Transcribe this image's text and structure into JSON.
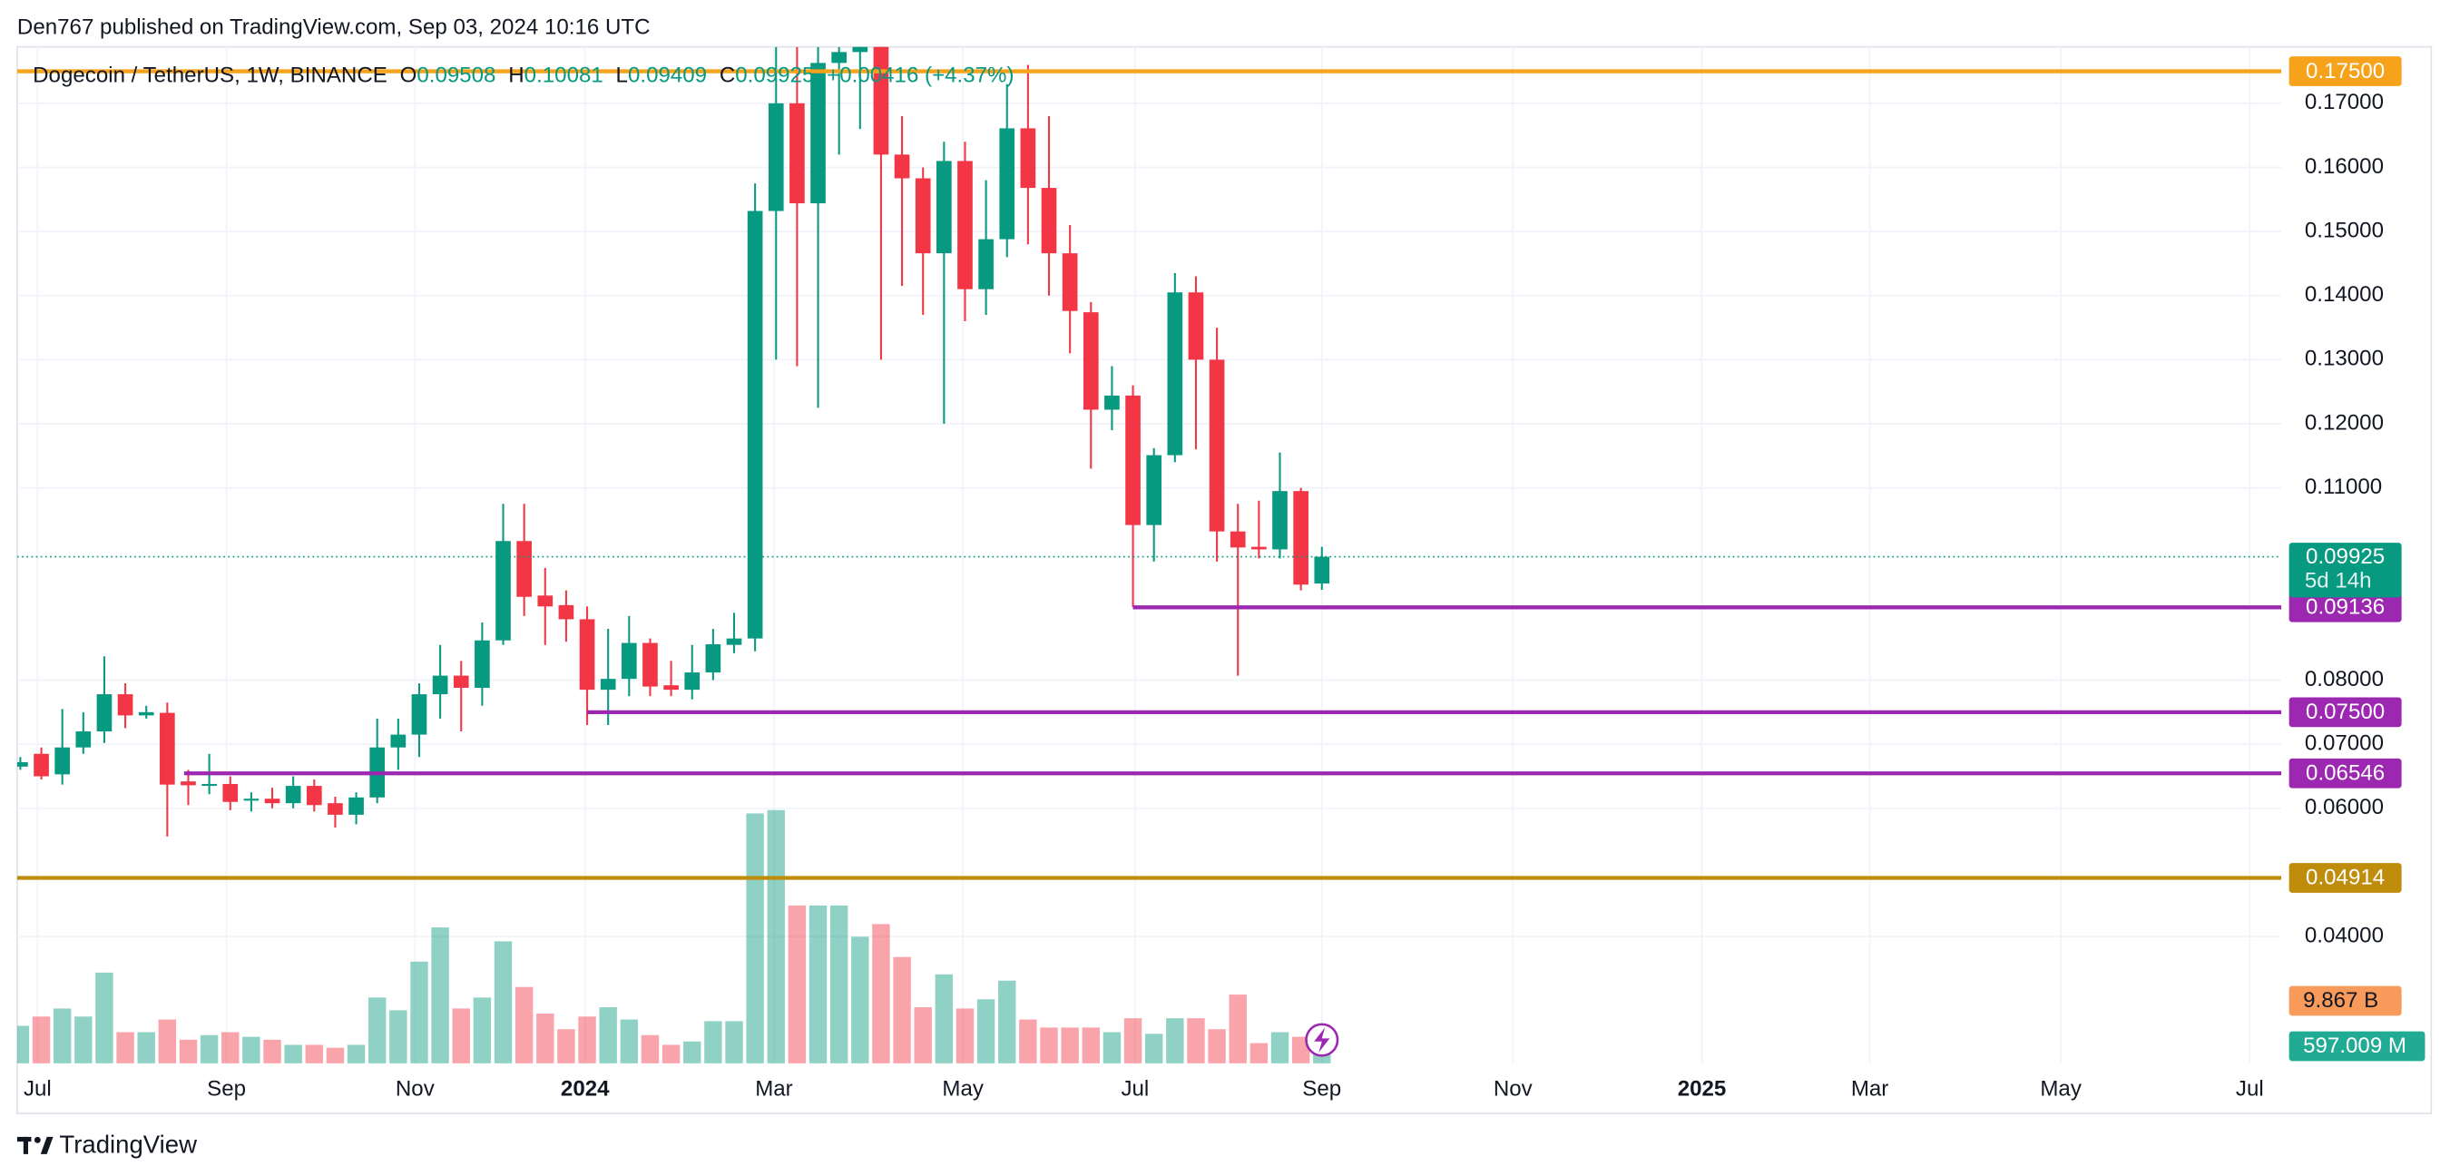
{
  "header": "Den767 published on TradingView.com, Sep 03, 2024 10:16 UTC",
  "footer": "TradingView",
  "chart_data": {
    "type": "candlestick",
    "symbol": "Dogecoin / TetherUS, 1W, BINANCE",
    "legend": {
      "o_label": "O",
      "open": "0.09508",
      "h_label": "H",
      "high": "0.10081",
      "l_label": "L",
      "low": "0.09409",
      "c_label": "C",
      "close": "0.09925",
      "change": "+0.00416 (+4.37%)"
    },
    "up_color": "#089981",
    "down_color": "#f23645",
    "open": [
      0.0665,
      0.0685,
      0.0653,
      0.0695,
      0.072,
      0.0778,
      0.0745,
      0.0749,
      0.0642,
      0.0636,
      0.0638,
      0.0612,
      0.0615,
      0.0608,
      0.0635,
      0.0608,
      0.059,
      0.0617,
      0.0695,
      0.0715,
      0.0778,
      0.0807,
      0.0788,
      0.0862,
      0.1017,
      0.0932,
      0.0917,
      0.0895,
      0.0785,
      0.0802,
      0.0858,
      0.0792,
      0.0785,
      0.0812,
      0.0855,
      0.0865,
      0.1532,
      0.17,
      0.1544,
      0.1763,
      0.178,
      0.183,
      0.162,
      0.1583,
      0.1466,
      0.161,
      0.141,
      0.1488,
      0.1661,
      0.1568,
      0.1466,
      0.1374,
      0.1222,
      0.1244,
      0.1042,
      0.1151,
      0.1405,
      0.13,
      0.1032,
      0.1008,
      0.1004,
      0.1095,
      0.09508
    ],
    "high": [
      0.068,
      0.0695,
      0.0755,
      0.075,
      0.0837,
      0.0795,
      0.076,
      0.0765,
      0.066,
      0.0685,
      0.065,
      0.0625,
      0.0632,
      0.065,
      0.0645,
      0.0618,
      0.0625,
      0.074,
      0.074,
      0.0795,
      0.0855,
      0.083,
      0.089,
      0.1075,
      0.1075,
      0.0975,
      0.094,
      0.0915,
      0.088,
      0.09,
      0.0865,
      0.083,
      0.0855,
      0.088,
      0.0905,
      0.1575,
      0.1788,
      0.1788,
      0.1788,
      0.1788,
      0.19,
      0.187,
      0.168,
      0.16,
      0.164,
      0.164,
      0.158,
      0.173,
      0.176,
      0.168,
      0.151,
      0.139,
      0.129,
      0.126,
      0.1162,
      0.1435,
      0.143,
      0.135,
      0.1075,
      0.108,
      0.1155,
      0.11,
      0.10081
    ],
    "low": [
      0.066,
      0.0645,
      0.0637,
      0.0685,
      0.0702,
      0.0725,
      0.074,
      0.0556,
      0.0605,
      0.0622,
      0.0597,
      0.0595,
      0.06,
      0.06,
      0.0595,
      0.057,
      0.0575,
      0.0608,
      0.066,
      0.068,
      0.074,
      0.072,
      0.076,
      0.0855,
      0.09,
      0.0855,
      0.086,
      0.073,
      0.073,
      0.0775,
      0.0775,
      0.0775,
      0.077,
      0.08,
      0.0842,
      0.0845,
      0.13,
      0.129,
      0.1225,
      0.162,
      0.166,
      0.13,
      0.1415,
      0.137,
      0.12,
      0.136,
      0.137,
      0.146,
      0.148,
      0.14,
      0.131,
      0.113,
      0.119,
      0.0914,
      0.0985,
      0.114,
      0.116,
      0.0985,
      0.0807,
      0.099,
      0.099,
      0.094,
      0.09409
    ],
    "close": [
      0.0672,
      0.065,
      0.0695,
      0.072,
      0.0778,
      0.0745,
      0.075,
      0.0637,
      0.0636,
      0.0638,
      0.061,
      0.0615,
      0.0608,
      0.0635,
      0.0605,
      0.059,
      0.0617,
      0.0695,
      0.0715,
      0.0778,
      0.0807,
      0.0788,
      0.0862,
      0.1017,
      0.093,
      0.0915,
      0.0895,
      0.0785,
      0.0802,
      0.0858,
      0.079,
      0.0785,
      0.0812,
      0.0856,
      0.0865,
      0.1532,
      0.17,
      0.1544,
      0.1763,
      0.178,
      0.183,
      0.162,
      0.1583,
      0.1466,
      0.161,
      0.141,
      0.1488,
      0.1661,
      0.1568,
      0.1466,
      0.1376,
      0.1222,
      0.1244,
      0.1042,
      0.1151,
      0.1405,
      0.13,
      0.1032,
      0.1007,
      0.1004,
      0.1095,
      0.0949,
      0.09925
    ],
    "volume": [
      0.89,
      1.11,
      1.3,
      1.11,
      2.15,
      0.74,
      0.74,
      1.04,
      0.56,
      0.67,
      0.74,
      0.63,
      0.56,
      0.44,
      0.44,
      0.37,
      0.44,
      1.56,
      1.26,
      2.41,
      3.22,
      1.3,
      1.56,
      2.89,
      1.81,
      1.18,
      0.81,
      1.11,
      1.33,
      1.04,
      0.67,
      0.44,
      0.52,
      1.0,
      1.0,
      5.92,
      6.0,
      3.74,
      3.74,
      3.74,
      3.0,
      3.3,
      2.52,
      1.33,
      2.11,
      1.3,
      1.52,
      1.96,
      1.04,
      0.85,
      0.85,
      0.85,
      0.74,
      1.07,
      0.7,
      1.07,
      1.07,
      0.81,
      1.63,
      0.48,
      0.74,
      0.63,
      0.597
    ],
    "volume_lim": [
      0,
      10
    ],
    "volume_labels": [
      {
        "label": "9.867 B",
        "color": "#f89a5a"
      },
      {
        "label": "597.009 M",
        "color": "#22ab94"
      }
    ],
    "xlim": [
      -0.15,
      107.7
    ],
    "xticks": [
      {
        "value": 0.82,
        "label": "Jul"
      },
      {
        "value": 9.82,
        "label": "Sep"
      },
      {
        "value": 18.8,
        "label": "Nov"
      },
      {
        "value": 26.9,
        "label": "2024"
      },
      {
        "value": 35.9,
        "label": "Mar"
      },
      {
        "value": 44.9,
        "label": "May"
      },
      {
        "value": 53.1,
        "label": "Jul"
      },
      {
        "value": 62,
        "label": "Sep"
      },
      {
        "value": 71.1,
        "label": "Nov"
      },
      {
        "value": 80.1,
        "label": "2025"
      },
      {
        "value": 88.1,
        "label": "Mar"
      },
      {
        "value": 97.2,
        "label": "May"
      },
      {
        "value": 106.2,
        "label": "Jul"
      }
    ],
    "ylim": [
      0.0202,
      0.1788
    ],
    "yticks": [
      {
        "value": 0.04,
        "label": "0.04000"
      },
      {
        "value": 0.06,
        "label": "0.06000"
      },
      {
        "value": 0.07,
        "label": "0.07000"
      },
      {
        "value": 0.08,
        "label": "0.08000"
      },
      {
        "value": 0.11,
        "label": "0.11000"
      },
      {
        "value": 0.12,
        "label": "0.12000"
      },
      {
        "value": 0.13,
        "label": "0.13000"
      },
      {
        "value": 0.14,
        "label": "0.14000"
      },
      {
        "value": 0.15,
        "label": "0.15000"
      },
      {
        "value": 0.16,
        "label": "0.16000"
      },
      {
        "value": 0.17,
        "label": "0.17000"
      }
    ],
    "grid": true,
    "levels": [
      {
        "value": 0.175,
        "label": "0.17500",
        "color": "#f7a21b"
      },
      {
        "value": 0.09136,
        "label": "0.09136",
        "color": "#9c27b0",
        "from": 53
      },
      {
        "value": 0.075,
        "label": "0.07500",
        "color": "#9c27b0",
        "from": 27
      },
      {
        "value": 0.06546,
        "label": "0.06546",
        "color": "#9c27b0",
        "from": 7.8
      },
      {
        "value": 0.04914,
        "label": "0.04914",
        "color": "#bf8c0c"
      }
    ],
    "price_line": {
      "value": 0.09925,
      "label": "0.09925",
      "countdown": "5d 14h",
      "color": "#089981"
    }
  }
}
